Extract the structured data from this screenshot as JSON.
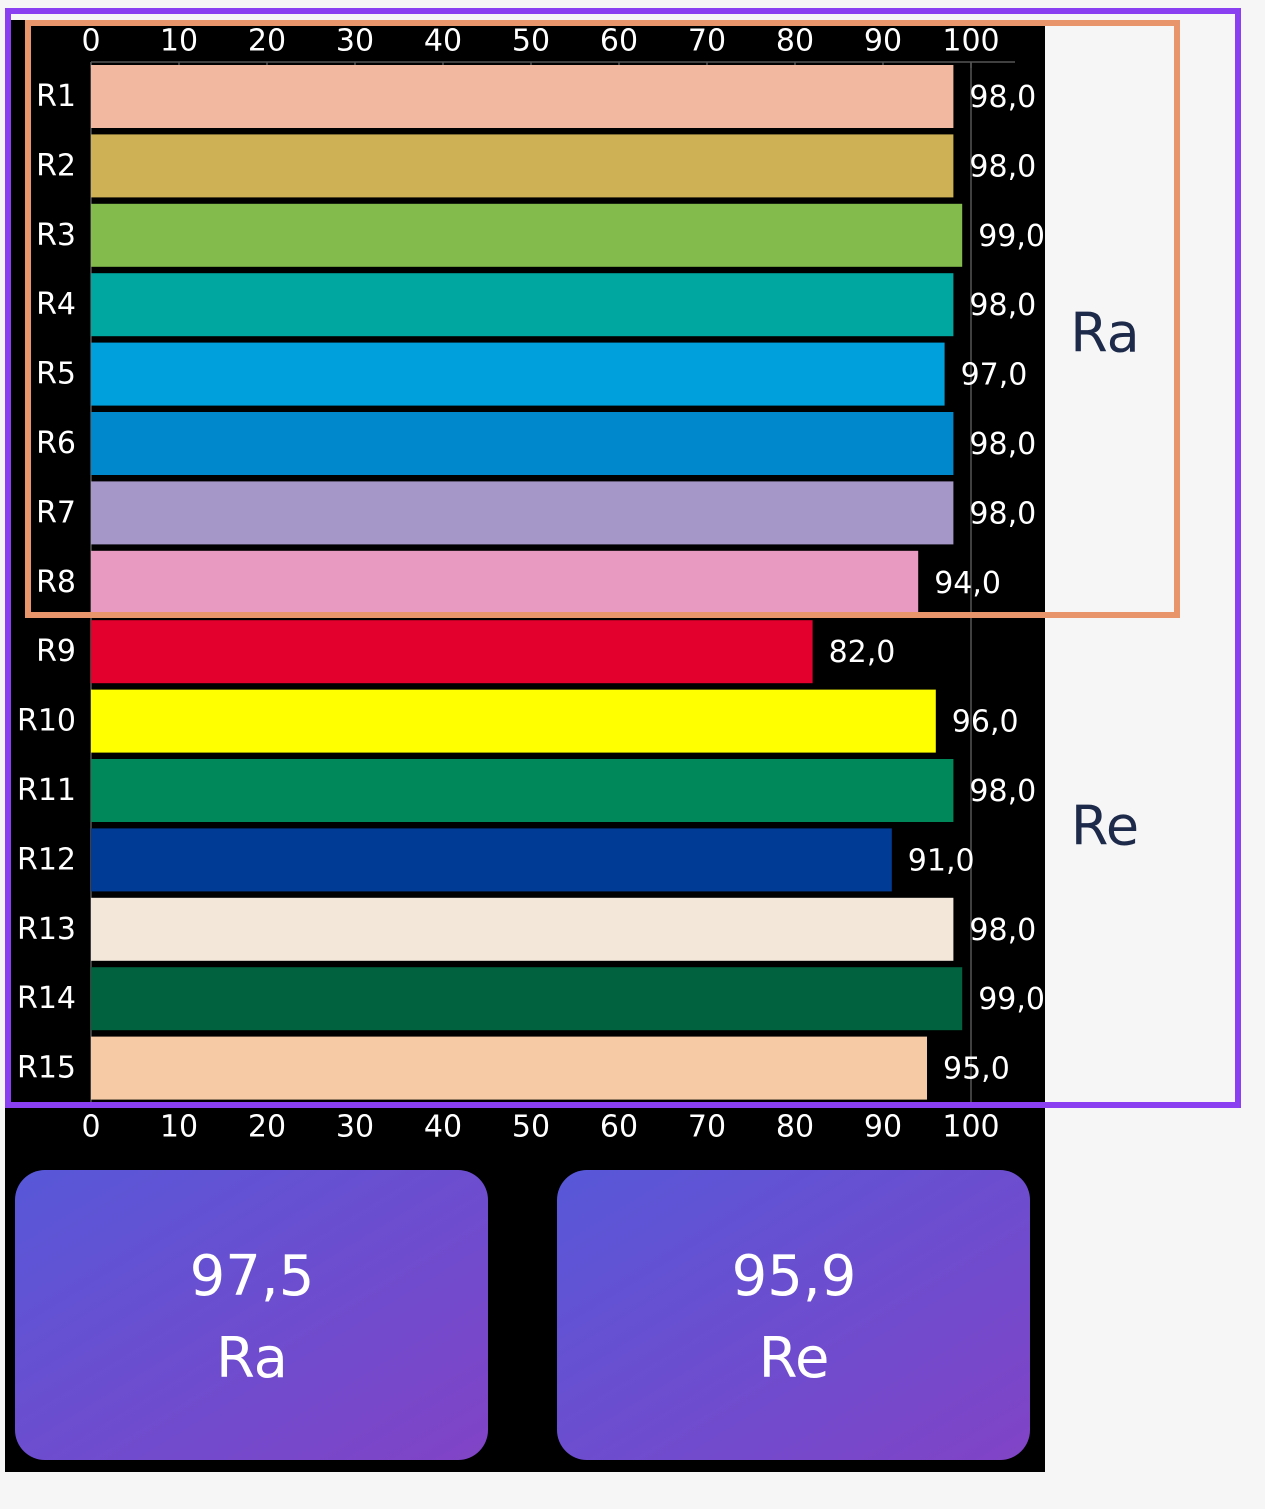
{
  "chart_data": {
    "type": "bar",
    "orientation": "horizontal",
    "categories": [
      "R1",
      "R2",
      "R3",
      "R4",
      "R5",
      "R6",
      "R7",
      "R8",
      "R9",
      "R10",
      "R11",
      "R12",
      "R13",
      "R14",
      "R15"
    ],
    "values": [
      98,
      98,
      99,
      98,
      97,
      98,
      98,
      94,
      82,
      96,
      98,
      91,
      98,
      99,
      95
    ],
    "value_labels": [
      "98,0",
      "98,0",
      "99,0",
      "98,0",
      "97,0",
      "98,0",
      "98,0",
      "94,0",
      "82,0",
      "96,0",
      "98,0",
      "91,0",
      "98,0",
      "99,0",
      "95,0"
    ],
    "colors": [
      "#f2b8a0",
      "#cfb155",
      "#84bb4d",
      "#00a6a0",
      "#00a0dc",
      "#0088cc",
      "#a597c8",
      "#e89ac0",
      "#e4002d",
      "#ffff00",
      "#00875a",
      "#003c96",
      "#f3e7da",
      "#00623e",
      "#f5caa5"
    ],
    "xlim": [
      0,
      100
    ],
    "xticks": [
      0,
      10,
      20,
      30,
      40,
      50,
      60,
      70,
      80,
      90,
      100
    ]
  },
  "annotations": [
    "Ra",
    "Re"
  ],
  "summary": [
    {
      "value": "97,5",
      "label": "Ra"
    },
    {
      "value": "95,9",
      "label": "Re"
    }
  ]
}
